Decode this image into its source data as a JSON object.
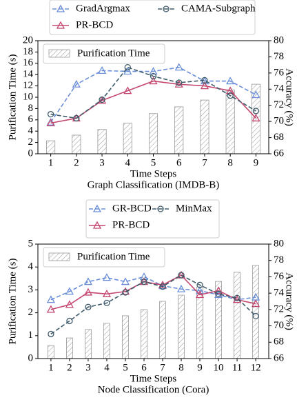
{
  "chart_data": [
    {
      "type": "bar_line",
      "x_label": "Time Steps",
      "caption": "Graph Classification (IMDB-B)",
      "y_label": "Purification Time (s)",
      "y2_label": "Accuracy (%)",
      "x": [
        1,
        2,
        3,
        4,
        5,
        6,
        7,
        8,
        9
      ],
      "xlim": [
        0.5,
        9.5
      ],
      "xticks": [
        1,
        2,
        3,
        4,
        5,
        6,
        7,
        8,
        9
      ],
      "ylim": [
        0,
        20
      ],
      "yticks": [
        0,
        2,
        4,
        6,
        8,
        10,
        12,
        14,
        16,
        18,
        20
      ],
      "y2lim": [
        66,
        80
      ],
      "y2ticks": [
        66,
        68,
        70,
        72,
        74,
        76,
        78,
        80
      ],
      "series": [
        {
          "name": "Purification Time",
          "type": "bar",
          "axis": "y",
          "color": "#999999",
          "values": [
            2.3,
            3.3,
            4.3,
            5.4,
            7.1,
            8.3,
            9.5,
            11.3,
            12.3
          ]
        },
        {
          "name": "GradArgmax",
          "type": "line",
          "axis": "y2",
          "color": "#6a8fd8",
          "dashed": true,
          "marker": "triangle",
          "values": [
            69.9,
            74.6,
            76.3,
            76.2,
            76.2,
            76.7,
            75.0,
            75.0,
            73.3
          ]
        },
        {
          "name": "PR-BCD",
          "type": "line",
          "axis": "y2",
          "color": "#c4466e",
          "dashed": false,
          "marker": "triangle",
          "values": [
            69.8,
            70.4,
            72.6,
            73.8,
            75.0,
            74.6,
            74.4,
            73.8,
            70.4
          ]
        },
        {
          "name": "CAMA-Subgraph",
          "type": "line",
          "axis": "y2",
          "color": "#3f5a6a",
          "dashed": true,
          "marker": "circle",
          "values": [
            70.9,
            70.4,
            72.7,
            76.7,
            75.6,
            74.8,
            75.1,
            73.2,
            71.3
          ]
        }
      ]
    },
    {
      "type": "bar_line",
      "x_label": "Time Steps",
      "caption": "Node Classification (Cora)",
      "y_label": "Purification Time (s)",
      "y2_label": "Accuracy (%)",
      "x": [
        1,
        2,
        3,
        4,
        5,
        6,
        7,
        8,
        9,
        10,
        11,
        12
      ],
      "xlim": [
        0.3,
        12.7
      ],
      "xticks": [
        1,
        2,
        3,
        4,
        5,
        6,
        7,
        8,
        9,
        10,
        11,
        12
      ],
      "ylim": [
        0,
        5
      ],
      "yticks": [
        0,
        1,
        2,
        3,
        4,
        5
      ],
      "y2lim": [
        66,
        80
      ],
      "y2ticks": [
        66,
        68,
        70,
        72,
        74,
        76,
        78,
        80
      ],
      "series": [
        {
          "name": "Purification Time",
          "type": "bar",
          "axis": "y",
          "color": "#999999",
          "values": [
            0.57,
            0.9,
            1.27,
            1.54,
            1.87,
            2.14,
            2.5,
            2.77,
            3.13,
            3.37,
            3.77,
            4.07
          ]
        },
        {
          "name": "GR-BCD",
          "type": "line",
          "axis": "y2",
          "color": "#6a8fd8",
          "dashed": true,
          "marker": "triangle",
          "values": [
            73.2,
            74.2,
            75.4,
            75.9,
            75.4,
            76.0,
            74.9,
            74.5,
            74.3,
            73.8,
            73.2,
            73.5
          ]
        },
        {
          "name": "PR-BCD",
          "type": "line",
          "axis": "y2",
          "color": "#c4466e",
          "dashed": false,
          "marker": "triangle",
          "values": [
            72.0,
            72.6,
            74.1,
            73.9,
            74.2,
            75.4,
            75.0,
            76.2,
            73.8,
            74.3,
            73.2,
            72.7
          ]
        },
        {
          "name": "MinMax",
          "type": "line",
          "axis": "y2",
          "color": "#3f5a6a",
          "dashed": true,
          "marker": "circle",
          "values": [
            69.0,
            70.6,
            72.3,
            72.8,
            74.1,
            75.4,
            74.8,
            76.2,
            75.0,
            73.9,
            73.4,
            71.2
          ]
        }
      ]
    }
  ]
}
